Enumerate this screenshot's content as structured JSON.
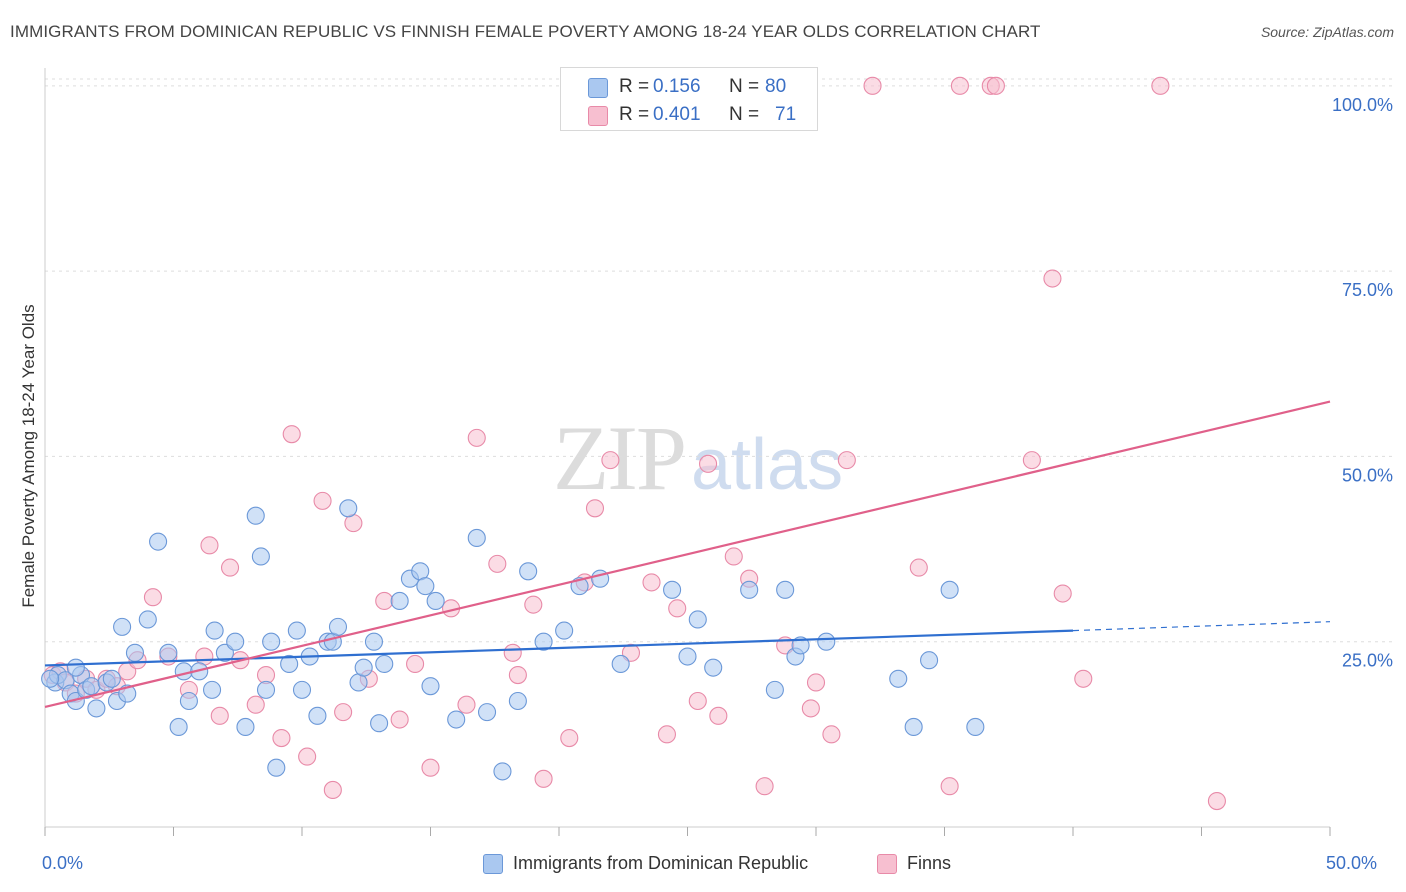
{
  "title": "IMMIGRANTS FROM DOMINICAN REPUBLIC VS FINNISH FEMALE POVERTY AMONG 18-24 YEAR OLDS CORRELATION CHART",
  "source": "Source: ZipAtlas.com",
  "watermark": {
    "zip": "ZIP",
    "atlas": "atlas"
  },
  "colors": {
    "blue_fill": "#aac8f0",
    "blue_stroke": "#6b98d8",
    "blue_line": "#2f6fd0",
    "pink_fill": "#f7bfd0",
    "pink_stroke": "#e88aa8",
    "pink_line": "#e0608a",
    "axis_label": "#3a6fc5",
    "grid": "#dddddd"
  },
  "legend_top": [
    {
      "r_label": "R =",
      "r_value": "0.156",
      "n_label": "N =",
      "n_value": "80",
      "color": "#aac8f0"
    },
    {
      "r_label": "R =",
      "r_value": "0.401",
      "n_label": "N =",
      "n_value": "71",
      "color": "#f7bfd0"
    }
  ],
  "legend_bottom": [
    {
      "label": "Immigrants from Dominican Republic",
      "color": "#aac8f0"
    },
    {
      "label": "Finns",
      "color": "#f7bfd0"
    }
  ],
  "chart_data": {
    "type": "scatter",
    "title": "IMMIGRANTS FROM DOMINICAN REPUBLIC VS FINNISH FEMALE POVERTY AMONG 18-24 YEAR OLDS CORRELATION CHART",
    "xlabel": "",
    "ylabel": "Female Poverty Among 18-24 Year Olds",
    "xlim": [
      0,
      50
    ],
    "ylim": [
      0,
      102
    ],
    "x_tick_labels": [
      "0.0%",
      "50.0%"
    ],
    "y_ticks": [
      25,
      50,
      75,
      100
    ],
    "y_tick_labels": [
      "25.0%",
      "50.0%",
      "75.0%",
      "100.0%"
    ],
    "grid": true,
    "series": [
      {
        "name": "Immigrants from Dominican Republic",
        "r": 0.156,
        "n": 80,
        "trend": {
          "x0": 0,
          "y0": 21.8,
          "x1": 40,
          "y1": 26.5,
          "dashed_to_x": 50,
          "dashed_to_y": 27.7
        },
        "points": [
          [
            0.4,
            19.5
          ],
          [
            0.5,
            20.5
          ],
          [
            0.8,
            19.8
          ],
          [
            1.0,
            18.0
          ],
          [
            1.2,
            17.0
          ],
          [
            1.4,
            20.5
          ],
          [
            1.6,
            18.5
          ],
          [
            1.8,
            19.0
          ],
          [
            2.0,
            16.0
          ],
          [
            2.4,
            19.5
          ],
          [
            2.6,
            20.0
          ],
          [
            2.8,
            17.0
          ],
          [
            3.0,
            27.0
          ],
          [
            3.2,
            18.0
          ],
          [
            3.5,
            23.5
          ],
          [
            4.0,
            28.0
          ],
          [
            4.4,
            38.5
          ],
          [
            4.8,
            23.5
          ],
          [
            5.2,
            13.5
          ],
          [
            5.4,
            21.0
          ],
          [
            5.6,
            17.0
          ],
          [
            6.0,
            21.0
          ],
          [
            6.5,
            18.5
          ],
          [
            6.6,
            26.5
          ],
          [
            7.0,
            23.5
          ],
          [
            7.4,
            25.0
          ],
          [
            7.8,
            13.5
          ],
          [
            8.2,
            42.0
          ],
          [
            8.4,
            36.5
          ],
          [
            8.6,
            18.5
          ],
          [
            8.8,
            25.0
          ],
          [
            9.0,
            8.0
          ],
          [
            9.5,
            22.0
          ],
          [
            9.8,
            26.5
          ],
          [
            10.0,
            18.5
          ],
          [
            10.3,
            23.0
          ],
          [
            10.6,
            15.0
          ],
          [
            11.0,
            25.0
          ],
          [
            11.2,
            25.0
          ],
          [
            11.4,
            27.0
          ],
          [
            11.8,
            43.0
          ],
          [
            12.2,
            19.5
          ],
          [
            12.4,
            21.5
          ],
          [
            12.8,
            25.0
          ],
          [
            13.0,
            14.0
          ],
          [
            13.2,
            22.0
          ],
          [
            13.8,
            30.5
          ],
          [
            14.2,
            33.5
          ],
          [
            14.6,
            34.5
          ],
          [
            14.8,
            32.5
          ],
          [
            15.0,
            19.0
          ],
          [
            15.2,
            30.5
          ],
          [
            16.0,
            14.5
          ],
          [
            16.8,
            39.0
          ],
          [
            17.2,
            15.5
          ],
          [
            17.8,
            7.5
          ],
          [
            18.4,
            17.0
          ],
          [
            18.8,
            34.5
          ],
          [
            19.4,
            25.0
          ],
          [
            20.2,
            26.5
          ],
          [
            20.8,
            32.5
          ],
          [
            21.6,
            33.5
          ],
          [
            22.4,
            22.0
          ],
          [
            24.4,
            32.0
          ],
          [
            25.0,
            23.0
          ],
          [
            25.4,
            28.0
          ],
          [
            26.0,
            21.5
          ],
          [
            27.4,
            32.0
          ],
          [
            28.4,
            18.5
          ],
          [
            28.8,
            32.0
          ],
          [
            29.2,
            23.0
          ],
          [
            29.4,
            24.5
          ],
          [
            30.4,
            25.0
          ],
          [
            33.2,
            20.0
          ],
          [
            33.8,
            13.5
          ],
          [
            34.4,
            22.5
          ],
          [
            35.2,
            32.0
          ],
          [
            36.2,
            13.5
          ],
          [
            0.2,
            20.0
          ],
          [
            1.2,
            21.5
          ]
        ]
      },
      {
        "name": "Finns",
        "r": 0.401,
        "n": 71,
        "trend": {
          "x0": 0,
          "y0": 16.2,
          "x1": 50,
          "y1": 57.4
        },
        "points": [
          [
            0.3,
            20.5
          ],
          [
            0.6,
            21.0
          ],
          [
            0.8,
            19.5
          ],
          [
            1.2,
            18.0
          ],
          [
            1.6,
            20.0
          ],
          [
            2.0,
            18.5
          ],
          [
            2.4,
            20.0
          ],
          [
            2.8,
            19.0
          ],
          [
            3.2,
            21.0
          ],
          [
            3.6,
            22.5
          ],
          [
            4.2,
            31.0
          ],
          [
            4.8,
            23.0
          ],
          [
            5.6,
            18.5
          ],
          [
            6.2,
            23.0
          ],
          [
            6.4,
            38.0
          ],
          [
            6.8,
            15.0
          ],
          [
            7.2,
            35.0
          ],
          [
            7.6,
            22.5
          ],
          [
            8.2,
            16.5
          ],
          [
            8.6,
            20.5
          ],
          [
            9.2,
            12.0
          ],
          [
            9.6,
            53.0
          ],
          [
            10.2,
            9.5
          ],
          [
            10.8,
            44.0
          ],
          [
            11.2,
            5.0
          ],
          [
            11.6,
            15.5
          ],
          [
            12.0,
            41.0
          ],
          [
            12.6,
            20.0
          ],
          [
            13.2,
            30.5
          ],
          [
            13.8,
            14.5
          ],
          [
            14.4,
            22.0
          ],
          [
            15.0,
            8.0
          ],
          [
            15.8,
            29.5
          ],
          [
            16.4,
            16.5
          ],
          [
            16.8,
            52.5
          ],
          [
            17.6,
            35.5
          ],
          [
            18.2,
            23.5
          ],
          [
            18.4,
            20.5
          ],
          [
            19.0,
            30.0
          ],
          [
            19.4,
            6.5
          ],
          [
            20.4,
            12.0
          ],
          [
            21.0,
            33.0
          ],
          [
            21.4,
            43.0
          ],
          [
            22.0,
            49.5
          ],
          [
            22.8,
            23.5
          ],
          [
            23.6,
            33.0
          ],
          [
            24.2,
            12.5
          ],
          [
            24.6,
            29.5
          ],
          [
            25.4,
            17.0
          ],
          [
            25.8,
            49.0
          ],
          [
            26.2,
            15.0
          ],
          [
            26.8,
            36.5
          ],
          [
            27.4,
            33.5
          ],
          [
            28.0,
            5.5
          ],
          [
            28.8,
            24.5
          ],
          [
            29.8,
            16.0
          ],
          [
            30.0,
            19.5
          ],
          [
            30.6,
            12.5
          ],
          [
            31.2,
            49.5
          ],
          [
            32.2,
            100.0
          ],
          [
            34.0,
            35.0
          ],
          [
            35.2,
            5.5
          ],
          [
            35.6,
            100.0
          ],
          [
            36.8,
            100.0
          ],
          [
            37.0,
            100.0
          ],
          [
            38.4,
            49.5
          ],
          [
            39.2,
            74.0
          ],
          [
            39.6,
            31.5
          ],
          [
            40.4,
            20.0
          ],
          [
            43.4,
            100.0
          ],
          [
            45.6,
            3.5
          ]
        ]
      }
    ]
  }
}
